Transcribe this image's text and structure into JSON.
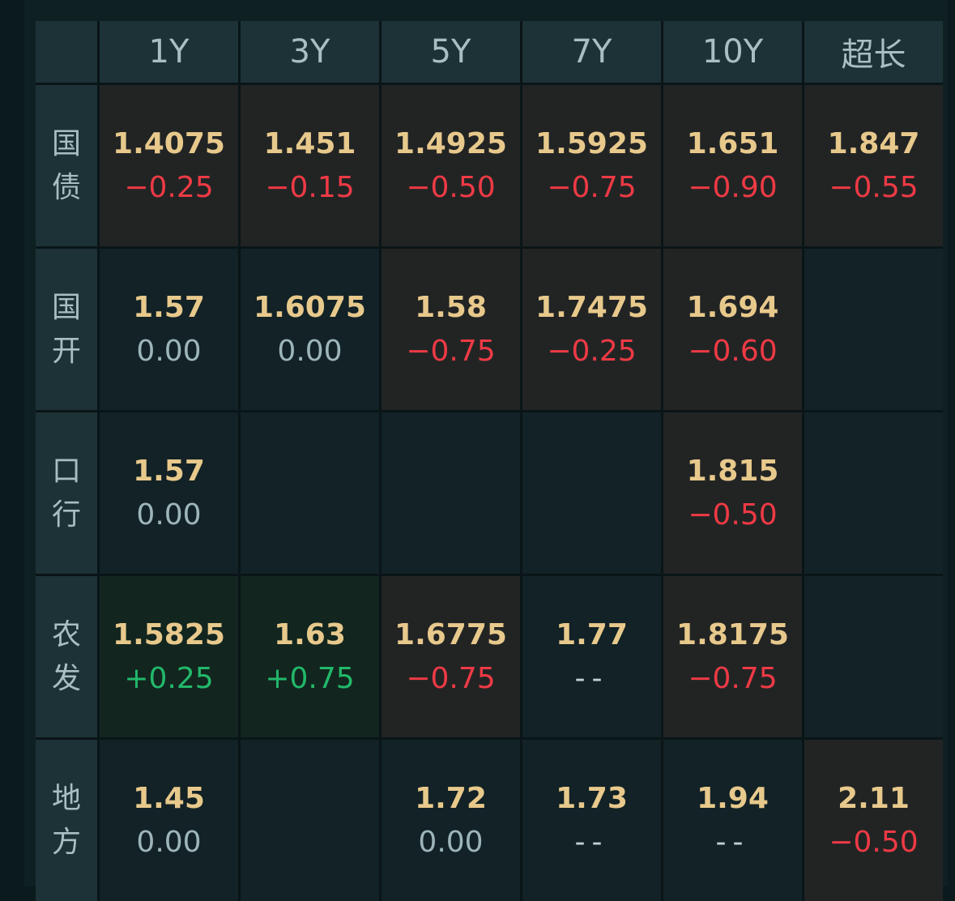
{
  "colors": {
    "yield": "#e8c98c",
    "down": "#ee3a45",
    "up": "#22b86a",
    "flat": "#9db5b8",
    "cell_dark": "#222424",
    "cell_teal": "#122226",
    "cell_green": "#12261f",
    "header_bg": "#1c3236"
  },
  "columns": [
    "1Y",
    "3Y",
    "5Y",
    "7Y",
    "10Y",
    "超长"
  ],
  "rows": [
    {
      "label": [
        "国",
        "债"
      ],
      "cells": [
        {
          "yield": "1.4075",
          "change": "−0.25",
          "tone": "down",
          "bg": "dark"
        },
        {
          "yield": "1.451",
          "change": "−0.15",
          "tone": "down",
          "bg": "dark"
        },
        {
          "yield": "1.4925",
          "change": "−0.50",
          "tone": "down",
          "bg": "dark"
        },
        {
          "yield": "1.5925",
          "change": "−0.75",
          "tone": "down",
          "bg": "dark"
        },
        {
          "yield": "1.651",
          "change": "−0.90",
          "tone": "down",
          "bg": "dark"
        },
        {
          "yield": "1.847",
          "change": "−0.55",
          "tone": "down",
          "bg": "dark"
        }
      ]
    },
    {
      "label": [
        "国",
        "开"
      ],
      "cells": [
        {
          "yield": "1.57",
          "change": "0.00",
          "tone": "flat",
          "bg": "teal"
        },
        {
          "yield": "1.6075",
          "change": "0.00",
          "tone": "flat",
          "bg": "teal"
        },
        {
          "yield": "1.58",
          "change": "−0.75",
          "tone": "down",
          "bg": "dark"
        },
        {
          "yield": "1.7475",
          "change": "−0.25",
          "tone": "down",
          "bg": "dark"
        },
        {
          "yield": "1.694",
          "change": "−0.60",
          "tone": "down",
          "bg": "dark"
        },
        {
          "yield": "",
          "change": "",
          "tone": "none",
          "bg": "teal"
        }
      ]
    },
    {
      "label": [
        "口",
        "行"
      ],
      "cells": [
        {
          "yield": "1.57",
          "change": "0.00",
          "tone": "flat",
          "bg": "teal"
        },
        {
          "yield": "",
          "change": "",
          "tone": "none",
          "bg": "teal"
        },
        {
          "yield": "",
          "change": "",
          "tone": "none",
          "bg": "teal"
        },
        {
          "yield": "",
          "change": "",
          "tone": "none",
          "bg": "teal"
        },
        {
          "yield": "1.815",
          "change": "−0.50",
          "tone": "down",
          "bg": "dark"
        },
        {
          "yield": "",
          "change": "",
          "tone": "none",
          "bg": "teal"
        }
      ]
    },
    {
      "label": [
        "农",
        "发"
      ],
      "cells": [
        {
          "yield": "1.5825",
          "change": "+0.25",
          "tone": "up",
          "bg": "green"
        },
        {
          "yield": "1.63",
          "change": "+0.75",
          "tone": "up",
          "bg": "green"
        },
        {
          "yield": "1.6775",
          "change": "−0.75",
          "tone": "down",
          "bg": "dark"
        },
        {
          "yield": "1.77",
          "change": "--",
          "tone": "none",
          "bg": "teal"
        },
        {
          "yield": "1.8175",
          "change": "−0.75",
          "tone": "down",
          "bg": "dark"
        },
        {
          "yield": "",
          "change": "",
          "tone": "none",
          "bg": "teal"
        }
      ]
    },
    {
      "label": [
        "地",
        "方"
      ],
      "cells": [
        {
          "yield": "1.45",
          "change": "0.00",
          "tone": "flat",
          "bg": "teal"
        },
        {
          "yield": "",
          "change": "",
          "tone": "none",
          "bg": "teal"
        },
        {
          "yield": "1.72",
          "change": "0.00",
          "tone": "flat",
          "bg": "teal"
        },
        {
          "yield": "1.73",
          "change": "--",
          "tone": "none",
          "bg": "teal"
        },
        {
          "yield": "1.94",
          "change": "--",
          "tone": "none",
          "bg": "teal"
        },
        {
          "yield": "2.11",
          "change": "−0.50",
          "tone": "down",
          "bg": "dark"
        }
      ]
    }
  ]
}
